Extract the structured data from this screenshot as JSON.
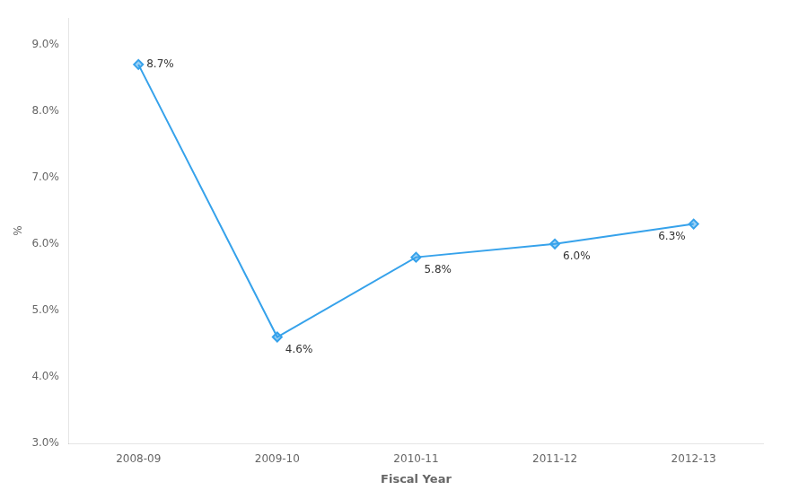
{
  "chart_data": {
    "type": "line",
    "categories": [
      "2008-09",
      "2009-10",
      "2010-11",
      "2011-12",
      "2012-13"
    ],
    "values": [
      8.7,
      4.6,
      5.8,
      6.0,
      6.3
    ],
    "value_labels": [
      "8.7%",
      "4.6%",
      "5.8%",
      "6.0%",
      "6.3%"
    ],
    "data_labels": true,
    "marker": "diamond",
    "x_label": "Fiscal Year",
    "y_label": "%",
    "ylim": [
      3.0,
      9.4
    ],
    "yticks": [
      {
        "value": 3.0,
        "label": "3.0%"
      },
      {
        "value": 4.0,
        "label": "4.0%"
      },
      {
        "value": 5.0,
        "label": "5.0%"
      },
      {
        "value": 6.0,
        "label": "6.0%"
      },
      {
        "value": 7.0,
        "label": "7.0%"
      },
      {
        "value": 8.0,
        "label": "8.0%"
      },
      {
        "value": 9.0,
        "label": "9.0%"
      }
    ],
    "grid": false,
    "legend": null
  }
}
